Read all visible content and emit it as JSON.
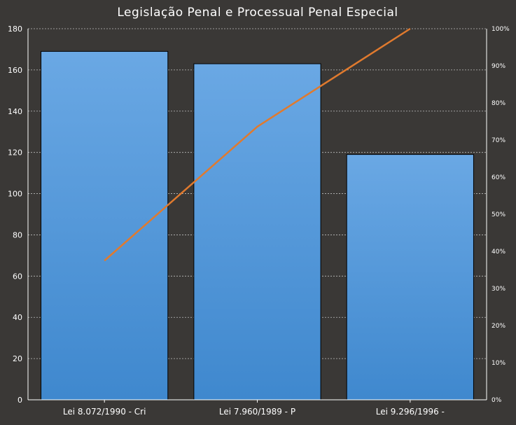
{
  "chart_data": {
    "type": "bar",
    "title": "Legislação Penal e Processual Penal Especial",
    "categories": [
      "Lei 8.072/1990  - Cri",
      "Lei 7.960/1989  - P",
      "Lei 9.296/1996  -"
    ],
    "series": [
      {
        "values": [
          169,
          163,
          119
        ],
        "color": "#5a9ee0"
      },
      {
        "type": "line",
        "axis": "secondary",
        "values": [
          37.5,
          73.6,
          100
        ],
        "color": "#e07a2e"
      }
    ],
    "ylim": [
      0,
      180
    ],
    "yticks": [
      "0",
      "20",
      "40",
      "60",
      "80",
      "100",
      "120",
      "140",
      "160",
      "180"
    ],
    "y2lim": [
      0,
      100
    ],
    "y2ticks": [
      "0%",
      "10%",
      "20%",
      "30%",
      "40%",
      "50%",
      "60%",
      "70%",
      "80%",
      "90%",
      "100%"
    ],
    "grid": true,
    "legend": "none",
    "colors": {
      "background": "#3a3836",
      "bar_border": "#000000",
      "grid": "#bfbfbf",
      "text": "#ffffff"
    }
  }
}
